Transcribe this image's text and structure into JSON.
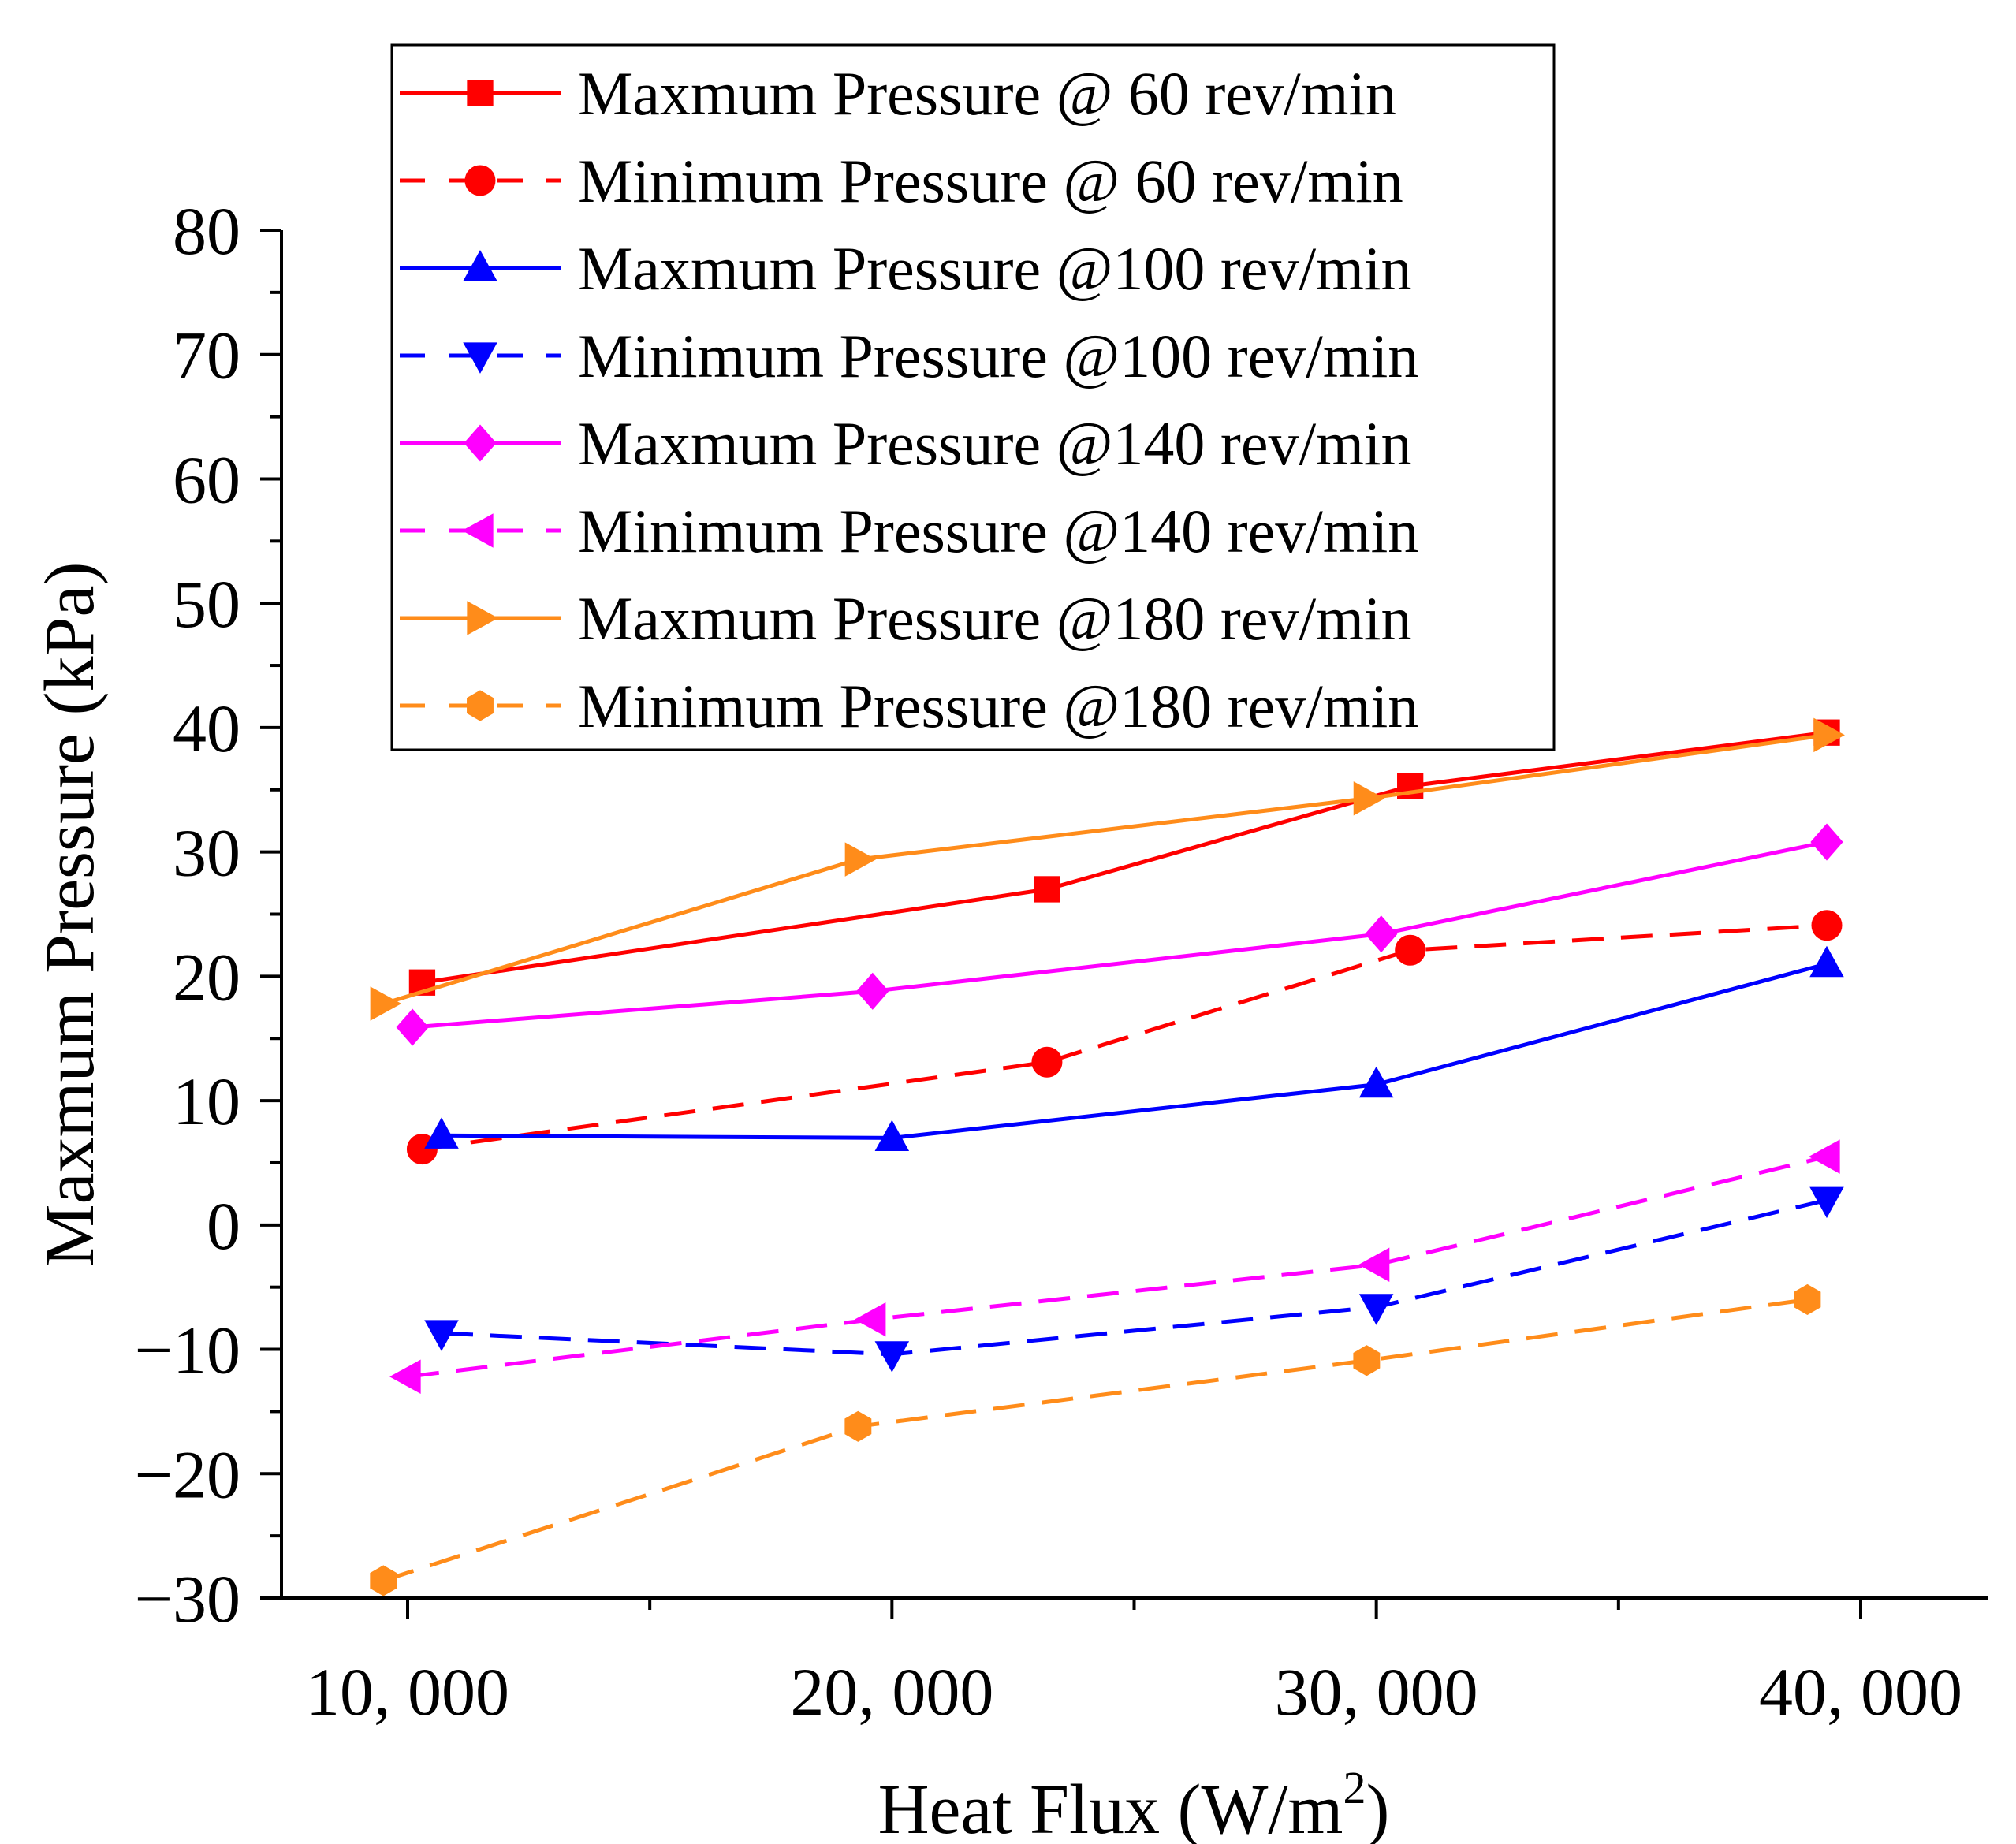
{
  "chart_data": {
    "type": "line",
    "title": "",
    "xlabel": "Heat Flux (W/m",
    "xlabel_sup": "2",
    "xlabel_end": ")",
    "ylabel": "Maxmum Pressure (kPa)",
    "xlim": [
      7500,
      42500
    ],
    "ylim": [
      -30,
      80
    ],
    "x_ticks": [
      {
        "value": 10000,
        "label": "10, 000"
      },
      {
        "value": 20000,
        "label": "20, 000"
      },
      {
        "value": 30000,
        "label": "30, 000"
      },
      {
        "value": 40000,
        "label": "40, 000"
      }
    ],
    "y_ticks": [
      {
        "value": 80,
        "label": "80"
      },
      {
        "value": 70,
        "label": "70"
      },
      {
        "value": 60,
        "label": "60"
      },
      {
        "value": 50,
        "label": "50"
      },
      {
        "value": 40,
        "label": "40"
      },
      {
        "value": 30,
        "label": "30"
      },
      {
        "value": 20,
        "label": "20"
      },
      {
        "value": 10,
        "label": "10"
      },
      {
        "value": 0,
        "label": "0"
      },
      {
        "value": -10,
        "label": "−10"
      },
      {
        "value": -20,
        "label": "−20"
      },
      {
        "value": -30,
        "label": "−30"
      }
    ],
    "legend_position": "top-center",
    "series": [
      {
        "name": "Maxmum Pressure @ 60 rev/min",
        "color": "#ff0000",
        "dash": false,
        "marker": "square",
        "x": [
          10300,
          23200,
          30700,
          39300
        ],
        "y": [
          19.5,
          27,
          35.3,
          39.6
        ]
      },
      {
        "name": "Minimum Pressure @ 60 rev/min",
        "color": "#ff0000",
        "dash": true,
        "marker": "circle",
        "x": [
          10300,
          23200,
          30700,
          39300
        ],
        "y": [
          6.1,
          13.1,
          22.1,
          24.1
        ]
      },
      {
        "name": "Maxmum Pressure @100 rev/min",
        "color": "#0000ff",
        "dash": false,
        "marker": "triangle-up",
        "x": [
          10700,
          20000,
          30000,
          39300
        ],
        "y": [
          7.2,
          7,
          11.3,
          21
        ]
      },
      {
        "name": "Minimum Pressure @100 rev/min",
        "color": "#0000ff",
        "dash": true,
        "marker": "triangle-down",
        "x": [
          10700,
          20000,
          30000,
          39300
        ],
        "y": [
          -8.7,
          -10.4,
          -6.6,
          2
        ]
      },
      {
        "name": "Maxmum Pressure @140 rev/min",
        "color": "#ff00ff",
        "dash": false,
        "marker": "diamond",
        "x": [
          10100,
          19600,
          30100,
          39300
        ],
        "y": [
          15.9,
          18.8,
          23.4,
          30.8
        ]
      },
      {
        "name": "Minimum Pressure @140 rev/min",
        "color": "#ff00ff",
        "dash": true,
        "marker": "triangle-left",
        "x": [
          10000,
          19600,
          30000,
          39300
        ],
        "y": [
          -12.2,
          -7.6,
          -3.2,
          5.5
        ]
      },
      {
        "name": "Maxmum Pressure @180 rev/min",
        "color": "#ff8c1a",
        "dash": false,
        "marker": "triangle-right",
        "x": [
          9500,
          19300,
          29800,
          39300
        ],
        "y": [
          17.8,
          29.4,
          34.3,
          39.4
        ]
      },
      {
        "name": "Minimum Pressure @180 rev/min",
        "color": "#ff8c1a",
        "dash": true,
        "marker": "hexagon",
        "x": [
          9500,
          19300,
          29800,
          38900
        ],
        "y": [
          -28.6,
          -16.2,
          -10.9,
          -6
        ]
      }
    ]
  }
}
